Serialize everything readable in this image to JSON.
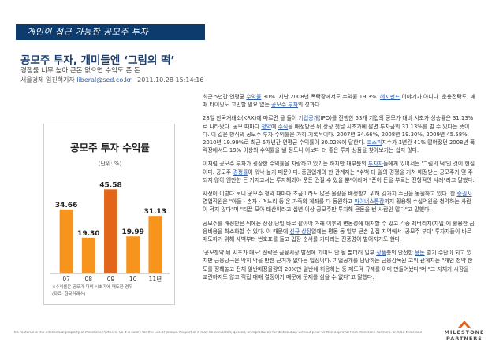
{
  "banner": {
    "title": "개인이 접근 가능한 공모주 투자"
  },
  "article": {
    "headline": "공모주 투자, 개미들엔 ‘그림의 떡’",
    "subhead": "경쟁률 너무 높아 큰돈 없으면 수익도 푼 돈",
    "byline": {
      "prefix": "서울경제 임진혁기자",
      "email": "liberal@sed.co.kr",
      "date": "2011.10.28 15:14:16"
    },
    "paragraphs": [
      [
        {
          "t": "최근 5년간 연평균 "
        },
        {
          "t": "수익률",
          "hl": true
        },
        {
          "t": " 30%. 지난 2008년 폭락장에서도 수익률 19.3%. "
        },
        {
          "t": "헤지펀드",
          "hl": true
        },
        {
          "t": " 이야기가 아니다. 운용전략도, 매매 타이밍도 고민할 필요 없는 "
        },
        {
          "t": "공모주 투자",
          "hl": true
        },
        {
          "t": "의 성과다."
        }
      ],
      [
        {
          "t": "28일 한국거래소(KRX)에 따르면 올 들어 "
        },
        {
          "t": "기업공개",
          "hl": true
        },
        {
          "t": "(IPO)를 진행한 53개 기업의 공모가 대비 시초가 상승률은 31.13%로 나타났다. 공모 때마다 "
        },
        {
          "t": "청약",
          "hl": true
        },
        {
          "t": "에 "
        },
        {
          "t": "주식",
          "hl": true
        },
        {
          "t": "을 배정받은 뒤 상장 첫날 시초가에 팔면 투자금의 31.13%를 벌 수 있다는 뜻이다. 이 같은 방식의 공모주 투자 수익률은 가히 기록적이다. 2007년 34.66%, 2008년 19.30%, 2009년 45.58%, 2010년 19.99%로 최근 5개년간 연평균 수익률이 30.02%에 달한다. "
        },
        {
          "t": "코스피",
          "hl": true
        },
        {
          "t": "지수가 1년간 41% 떨어졌던 2008년 폭락장에서도 19% 이상의 수익률을 낼 정도니 이보다 더 좋은 투자 상품을 찾아보기는 쉽지 않다."
        }
      ],
      [
        {
          "t": "이처럼 공모주 투자가 굉장한 수익률을 자랑하고 있기는 하지만 대부분의 "
        },
        {
          "t": "투자자",
          "hl": true
        },
        {
          "t": "들에게 있어서는 '그림의 떡'인 것이 현실이다. 공모주 "
        },
        {
          "t": "경쟁률",
          "hl": true
        },
        {
          "t": "이 워낙 높기 때문이다. 증권업계의 한 관계자는 \"수백 대 일의 경쟁을 거쳐 배정받는 공모주가 몇 주 되지 않아 웬만한 돈 가지고서는 투자해봐야 푼돈 건질 수 있을 뿐\"이라며 \"푼이 돈을 부르는 전형적인 사례\"라고 말했다."
        }
      ],
      [
        {
          "t": "사정이 이렇다 보니 공모주 청약 때마다 조금이라도 많은 물량을 배정받기 위해 갖가지 수단을 동원하고 있다. 한 "
        },
        {
          "t": "증권사",
          "hl": true
        },
        {
          "t": " 영업직원은 \"아들 · 손자 · 며느리 등 온 가족의 계좌를 다 동원하고 "
        },
        {
          "t": "마이너스통장",
          "hl": true
        },
        {
          "t": "까지 활용해 수십억원을 청약하는 사람이 적지 않다\"며 \"티끌 모아 태산이라고 십년 이상 공모주만 투자해 큰돈을 번 사람인 많다\"고 말했다."
        }
      ],
      [
        {
          "t": "공모주를 배정받은 뒤에는 상장 당일 바로 팔아야 거래 이후의 변동성에 대처할 수 있고 각종 레버리지(차입)에 활용한 금융비용을 최소화할 수 있다. 이 때문에 "
        },
        {
          "t": "신규 상장",
          "hl": true
        },
        {
          "t": "일에는 평동 동 일부 큰손 밀집 지역에서 '공모주 부대' 투자자들이 바로 매도하기 위해 새벽부터 번호표를 들고 입장 순서를 기다리는 진풍경이 벌어지기도 한다."
        }
      ],
      [
        {
          "t": "'공모청약 뒤 시초가 매도' 전략은 금융시장 발전에 기여도 안 될 뿐더러 일부 "
        },
        {
          "t": "상품",
          "hl": true
        },
        {
          "t": "층의 안전한 "
        },
        {
          "t": "용돈",
          "hl": true
        },
        {
          "t": " 벌기 수단이 되고 있지만 금융당국은 딱히 막을 만한 근거가 없다는 입장이다. 기업공개를 담당하는 금융감독원 고위 관계자는 \"개인 청약 한도를 정해놓고 전체 일반배정물량의 20%만 일반에 허용하는 등 제도적 규제를 이미 만들어놨다\"며 \"그 자체가 시장을 교란하지도 않고 직접 매매 결정이기 때문에 문제를 삼을 수 없다\"고 말했다."
        }
      ]
    ]
  },
  "chart_data": {
    "type": "bar",
    "title": "공모주 투자 수익률",
    "unit": "(단위: %)",
    "categories": [
      "07",
      "08",
      "09",
      "10",
      "11년"
    ],
    "values": [
      34.66,
      19.3,
      45.58,
      19.99,
      31.13
    ],
    "value_labels": [
      "34.66",
      "19.30",
      "45.58",
      "19.99",
      "31.13"
    ],
    "highlight_index": 2,
    "colors": {
      "bar": "#f7941d",
      "highlight": "#e2661a",
      "axis": "#888888"
    },
    "ylim": [
      0,
      50
    ],
    "notes": [
      "※수익률은 공모가 대비 시초가에 매도한 경우",
      "(자료: 한국거래소)"
    ]
  },
  "footer": {
    "text": "This material is the intellectual property of Milestone Partners. So it is solely for the use of Jenkus. No part of it may be circulated, quoted, or reproduced for distribution without prior written approval from Milestone Partners. ©2011 Milestone Partners. All rights reserved. designed by Jenkus"
  },
  "logo": {
    "line1": "MILESTONE",
    "line2": "PARTNERS",
    "icon": "milestone-chevron-icon",
    "colors": {
      "primary": "#e2661a",
      "text": "#4a4a4a"
    }
  }
}
